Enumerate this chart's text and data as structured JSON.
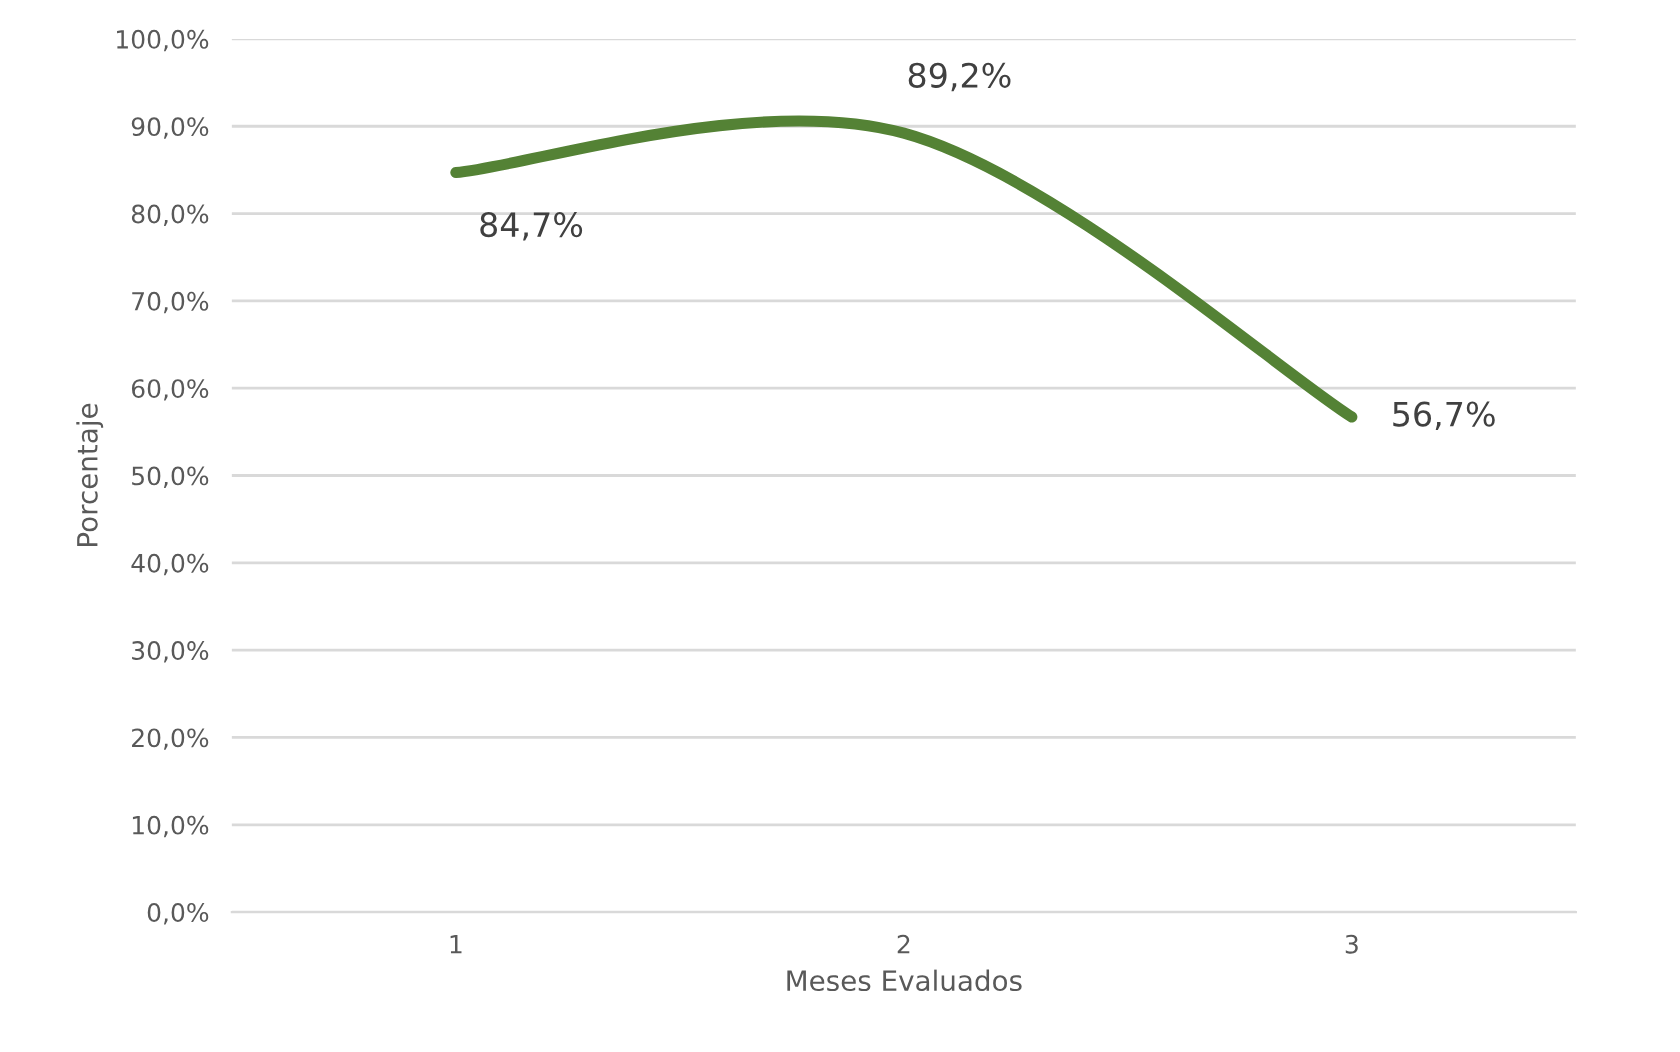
{
  "chart_data": {
    "type": "line",
    "xlabel": "Meses Evaluados",
    "ylabel": "Porcentaje",
    "categories": [
      "1",
      "2",
      "3"
    ],
    "series": [
      {
        "color": "#548235",
        "values": [
          84.7,
          89.2,
          56.7
        ],
        "value_labels": [
          "84,7%",
          "89,2%",
          "56,7%"
        ]
      }
    ],
    "ylim": [
      0,
      100
    ],
    "yticks": [
      {
        "value": 0,
        "label": "0,0%"
      },
      {
        "value": 10,
        "label": "10,0%"
      },
      {
        "value": 20,
        "label": "20,0%"
      },
      {
        "value": 30,
        "label": "30,0%"
      },
      {
        "value": 40,
        "label": "40,0%"
      },
      {
        "value": 50,
        "label": "50,0%"
      },
      {
        "value": 60,
        "label": "60,0%"
      },
      {
        "value": 70,
        "label": "70,0%"
      },
      {
        "value": 80,
        "label": "80,0%"
      },
      {
        "value": 90,
        "label": "90,0%"
      },
      {
        "value": 100,
        "label": "100,0%"
      }
    ],
    "grid": "y",
    "marker": "none",
    "line_style": "solid"
  }
}
